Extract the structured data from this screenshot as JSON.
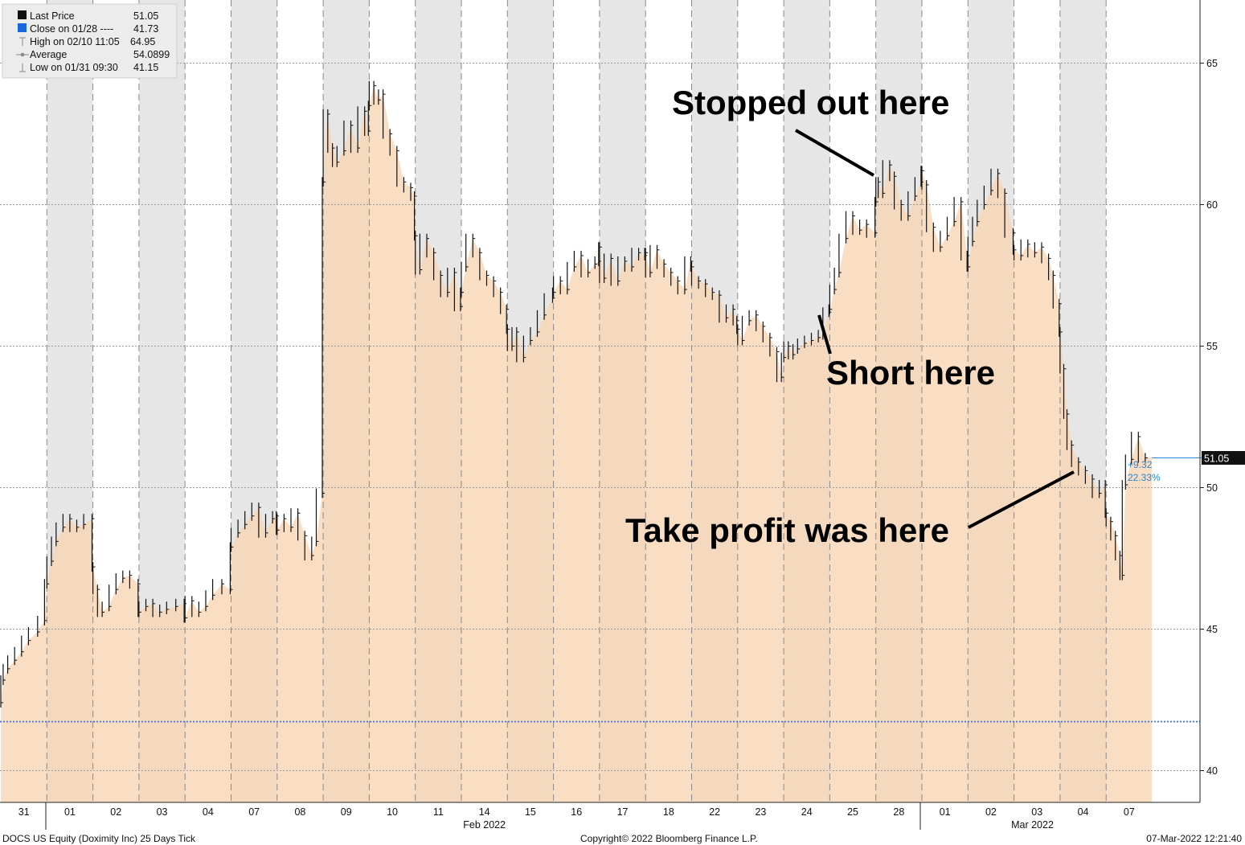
{
  "chart_data": {
    "type": "area",
    "security": "DOCS US Equity (Doximity Inc) 25 Days Tick",
    "copyright": "Copyright© 2022 Bloomberg Finance L.P.",
    "timestamp": "07-Mar-2022 12:21:40",
    "ylim": [
      39,
      67
    ],
    "y_ticks": [
      40,
      45,
      50,
      55,
      60,
      65
    ],
    "days": [
      "31",
      "01",
      "02",
      "03",
      "04",
      "07",
      "08",
      "09",
      "10",
      "11",
      "14",
      "15",
      "16",
      "17",
      "18",
      "22",
      "23",
      "24",
      "25",
      "28",
      "01",
      "02",
      "03",
      "04",
      "07"
    ],
    "month_labels": [
      {
        "label": "Feb 2022",
        "after_day": 1
      },
      {
        "label": "Mar 2022",
        "after_day": 20
      }
    ],
    "legend": [
      {
        "label": "Last Price",
        "value": "51.05"
      },
      {
        "label": "Close on 01/28 ----",
        "value": "41.73"
      },
      {
        "label": "High on 02/10 11:05",
        "value": "64.95"
      },
      {
        "label": "Average",
        "value": "54.0899"
      },
      {
        "label": "Low on 01/31 09:30",
        "value": "41.15"
      }
    ],
    "last_price": 51.05,
    "last_price_label": "51.05",
    "prior_close": 41.73,
    "change_label": "+9.32",
    "change_pct_label": "22.33%",
    "series": {
      "name": "Last Price",
      "x_unit": "trading day index (0 = 31 Jan)",
      "points": [
        [
          0.0,
          42.4
        ],
        [
          0.05,
          43.2
        ],
        [
          0.15,
          43.6
        ],
        [
          0.3,
          43.9
        ],
        [
          0.45,
          44.2
        ],
        [
          0.6,
          44.6
        ],
        [
          0.8,
          44.9
        ],
        [
          0.95,
          45.3
        ],
        [
          1.0,
          46.6
        ],
        [
          1.1,
          47.4
        ],
        [
          1.2,
          48.1
        ],
        [
          1.35,
          48.6
        ],
        [
          1.5,
          48.9
        ],
        [
          1.65,
          48.6
        ],
        [
          1.8,
          48.7
        ],
        [
          1.98,
          48.9
        ],
        [
          2.0,
          47.2
        ],
        [
          2.1,
          46.4
        ],
        [
          2.2,
          45.6
        ],
        [
          2.35,
          45.8
        ],
        [
          2.5,
          46.4
        ],
        [
          2.65,
          46.8
        ],
        [
          2.8,
          46.9
        ],
        [
          2.98,
          46.6
        ],
        [
          3.0,
          45.6
        ],
        [
          3.15,
          45.8
        ],
        [
          3.3,
          45.9
        ],
        [
          3.45,
          45.6
        ],
        [
          3.6,
          45.7
        ],
        [
          3.8,
          45.8
        ],
        [
          3.98,
          45.9
        ],
        [
          4.0,
          45.4
        ],
        [
          4.15,
          46.0
        ],
        [
          4.3,
          45.6
        ],
        [
          4.45,
          45.8
        ],
        [
          4.6,
          46.2
        ],
        [
          4.8,
          46.6
        ],
        [
          4.98,
          46.4
        ],
        [
          5.0,
          47.9
        ],
        [
          5.15,
          48.4
        ],
        [
          5.3,
          48.7
        ],
        [
          5.45,
          49.0
        ],
        [
          5.6,
          49.3
        ],
        [
          5.75,
          48.4
        ],
        [
          5.9,
          48.9
        ],
        [
          5.98,
          49.0
        ],
        [
          6.0,
          48.5
        ],
        [
          6.15,
          48.9
        ],
        [
          6.3,
          48.6
        ],
        [
          6.45,
          49.1
        ],
        [
          6.6,
          48.3
        ],
        [
          6.75,
          47.6
        ],
        [
          6.85,
          48.1
        ],
        [
          6.98,
          49.8
        ],
        [
          7.0,
          60.8
        ],
        [
          7.1,
          63.2
        ],
        [
          7.2,
          62.0
        ],
        [
          7.3,
          61.5
        ],
        [
          7.45,
          61.9
        ],
        [
          7.6,
          62.8
        ],
        [
          7.75,
          62.0
        ],
        [
          7.9,
          63.3
        ],
        [
          7.98,
          62.6
        ],
        [
          8.0,
          63.5
        ],
        [
          8.1,
          64.2
        ],
        [
          8.2,
          63.7
        ],
        [
          8.3,
          63.9
        ],
        [
          8.45,
          62.5
        ],
        [
          8.6,
          61.9
        ],
        [
          8.75,
          60.8
        ],
        [
          8.9,
          60.6
        ],
        [
          8.98,
          60.3
        ],
        [
          9.0,
          58.9
        ],
        [
          9.1,
          57.7
        ],
        [
          9.25,
          58.8
        ],
        [
          9.4,
          58.3
        ],
        [
          9.55,
          57.5
        ],
        [
          9.7,
          56.9
        ],
        [
          9.85,
          57.6
        ],
        [
          9.98,
          56.4
        ],
        [
          10.0,
          56.9
        ],
        [
          10.1,
          57.8
        ],
        [
          10.25,
          58.8
        ],
        [
          10.4,
          58.3
        ],
        [
          10.55,
          57.5
        ],
        [
          10.7,
          57.3
        ],
        [
          10.85,
          56.9
        ],
        [
          10.98,
          56.3
        ],
        [
          11.0,
          55.6
        ],
        [
          11.1,
          55.0
        ],
        [
          11.2,
          55.5
        ],
        [
          11.35,
          54.6
        ],
        [
          11.5,
          55.2
        ],
        [
          11.65,
          55.5
        ],
        [
          11.8,
          56.1
        ],
        [
          11.98,
          56.7
        ],
        [
          12.0,
          56.9
        ],
        [
          12.15,
          57.3
        ],
        [
          12.3,
          57.0
        ],
        [
          12.45,
          57.8
        ],
        [
          12.6,
          58.2
        ],
        [
          12.75,
          57.6
        ],
        [
          12.9,
          57.9
        ],
        [
          12.98,
          58.0
        ],
        [
          13.0,
          58.5
        ],
        [
          13.1,
          57.4
        ],
        [
          13.25,
          58.1
        ],
        [
          13.4,
          57.3
        ],
        [
          13.55,
          58.0
        ],
        [
          13.7,
          57.8
        ],
        [
          13.85,
          58.3
        ],
        [
          13.98,
          58.2
        ],
        [
          14.0,
          58.3
        ],
        [
          14.1,
          57.6
        ],
        [
          14.25,
          58.4
        ],
        [
          14.4,
          57.9
        ],
        [
          14.55,
          57.6
        ],
        [
          14.7,
          57.3
        ],
        [
          14.85,
          57.0
        ],
        [
          14.98,
          58.0
        ],
        [
          15.0,
          57.8
        ],
        [
          15.15,
          57.3
        ],
        [
          15.3,
          57.2
        ],
        [
          15.45,
          56.9
        ],
        [
          15.6,
          56.8
        ],
        [
          15.75,
          56.0
        ],
        [
          15.9,
          56.3
        ],
        [
          15.98,
          55.9
        ],
        [
          16.0,
          55.6
        ],
        [
          16.1,
          55.2
        ],
        [
          16.25,
          55.9
        ],
        [
          16.4,
          56.1
        ],
        [
          16.55,
          55.7
        ],
        [
          16.7,
          55.3
        ],
        [
          16.85,
          54.8
        ],
        [
          16.95,
          53.9
        ],
        [
          17.0,
          54.6
        ],
        [
          17.1,
          55.0
        ],
        [
          17.2,
          54.7
        ],
        [
          17.3,
          54.9
        ],
        [
          17.45,
          55.1
        ],
        [
          17.6,
          55.2
        ],
        [
          17.75,
          55.3
        ],
        [
          17.85,
          55.4
        ],
        [
          17.98,
          56.2
        ],
        [
          18.0,
          56.3
        ],
        [
          18.1,
          57.0
        ],
        [
          18.2,
          57.6
        ],
        [
          18.35,
          58.8
        ],
        [
          18.5,
          59.6
        ],
        [
          18.65,
          59.1
        ],
        [
          18.8,
          59.3
        ],
        [
          18.98,
          59.0
        ],
        [
          19.0,
          60.1
        ],
        [
          19.05,
          60.8
        ],
        [
          19.15,
          60.4
        ],
        [
          19.3,
          61.4
        ],
        [
          19.4,
          61.0
        ],
        [
          19.55,
          60.0
        ],
        [
          19.7,
          59.6
        ],
        [
          19.85,
          60.3
        ],
        [
          19.98,
          60.8
        ],
        [
          20.0,
          61.2
        ],
        [
          20.1,
          60.7
        ],
        [
          20.25,
          59.2
        ],
        [
          20.4,
          58.5
        ],
        [
          20.55,
          58.9
        ],
        [
          20.7,
          59.4
        ],
        [
          20.85,
          60.1
        ],
        [
          20.98,
          58.2
        ],
        [
          21.0,
          57.8
        ],
        [
          21.1,
          58.7
        ],
        [
          21.2,
          59.4
        ],
        [
          21.35,
          60.0
        ],
        [
          21.5,
          60.5
        ],
        [
          21.65,
          61.1
        ],
        [
          21.8,
          60.4
        ],
        [
          21.98,
          59.0
        ],
        [
          22.0,
          58.4
        ],
        [
          22.15,
          58.2
        ],
        [
          22.3,
          58.6
        ],
        [
          22.45,
          58.3
        ],
        [
          22.6,
          58.5
        ],
        [
          22.75,
          58.1
        ],
        [
          22.85,
          57.5
        ],
        [
          22.98,
          56.5
        ],
        [
          23.0,
          55.5
        ],
        [
          23.08,
          54.2
        ],
        [
          23.15,
          52.6
        ],
        [
          23.25,
          51.5
        ],
        [
          23.4,
          50.9
        ],
        [
          23.55,
          50.6
        ],
        [
          23.7,
          50.3
        ],
        [
          23.85,
          49.8
        ],
        [
          23.98,
          50.1
        ],
        [
          24.0,
          49.1
        ],
        [
          24.1,
          48.8
        ],
        [
          24.2,
          48.3
        ],
        [
          24.3,
          47.6
        ],
        [
          24.35,
          46.9
        ],
        [
          24.42,
          50.1
        ],
        [
          24.55,
          51.0
        ],
        [
          24.7,
          51.8
        ],
        [
          24.85,
          51.05
        ]
      ]
    }
  }
}
